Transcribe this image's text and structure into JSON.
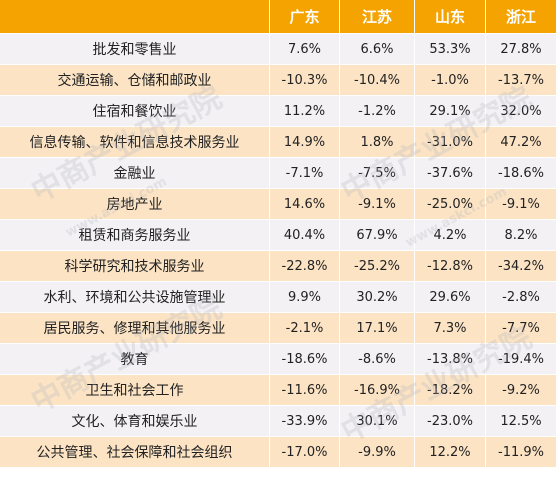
{
  "table": {
    "headers": [
      "",
      "广东",
      "江苏",
      "山东",
      "浙江"
    ],
    "rows": [
      {
        "industry": "批发和零售业",
        "values": [
          "7.6%",
          "6.6%",
          "53.3%",
          "27.8%"
        ]
      },
      {
        "industry": "交通运输、仓储和邮政业",
        "values": [
          "-10.3%",
          "-10.4%",
          "-1.0%",
          "-13.7%"
        ]
      },
      {
        "industry": "住宿和餐饮业",
        "values": [
          "11.2%",
          "-1.2%",
          "29.1%",
          "32.0%"
        ]
      },
      {
        "industry": "信息传输、软件和信息技术服务业",
        "values": [
          "14.9%",
          "1.8%",
          "-31.0%",
          "47.2%"
        ]
      },
      {
        "industry": "金融业",
        "values": [
          "-7.1%",
          "-7.5%",
          "-37.6%",
          "-18.6%"
        ]
      },
      {
        "industry": "房地产业",
        "values": [
          "14.6%",
          "-9.1%",
          "-25.0%",
          "-9.1%"
        ]
      },
      {
        "industry": "租赁和商务服务业",
        "values": [
          "40.4%",
          "67.9%",
          "4.2%",
          "8.2%"
        ]
      },
      {
        "industry": "科学研究和技术服务业",
        "values": [
          "-22.8%",
          "-25.2%",
          "-12.8%",
          "-34.2%"
        ]
      },
      {
        "industry": "水利、环境和公共设施管理业",
        "values": [
          "9.9%",
          "30.2%",
          "29.6%",
          "-2.8%"
        ]
      },
      {
        "industry": "居民服务、修理和其他服务业",
        "values": [
          "-2.1%",
          "17.1%",
          "7.3%",
          "-7.7%"
        ]
      },
      {
        "industry": "教育",
        "values": [
          "-18.6%",
          "-8.6%",
          "-13.8%",
          "-19.4%"
        ]
      },
      {
        "industry": "卫生和社会工作",
        "values": [
          "-11.6%",
          "-16.9%",
          "-18.2%",
          "-9.2%"
        ]
      },
      {
        "industry": "文化、体育和娱乐业",
        "values": [
          "-33.9%",
          "30.1%",
          "-23.0%",
          "12.5%"
        ]
      },
      {
        "industry": "公共管理、社会保障和社会组织",
        "values": [
          "-17.0%",
          "-9.9%",
          "12.2%",
          "-11.9%"
        ]
      }
    ]
  },
  "colors": {
    "header_bg": "#f4a300",
    "header_text": "#ffffff",
    "row_odd": "#f3f1f4",
    "row_even": "#fbe3c4"
  },
  "watermark": {
    "text": "中商产业研究院",
    "url": "www.askci.com"
  }
}
